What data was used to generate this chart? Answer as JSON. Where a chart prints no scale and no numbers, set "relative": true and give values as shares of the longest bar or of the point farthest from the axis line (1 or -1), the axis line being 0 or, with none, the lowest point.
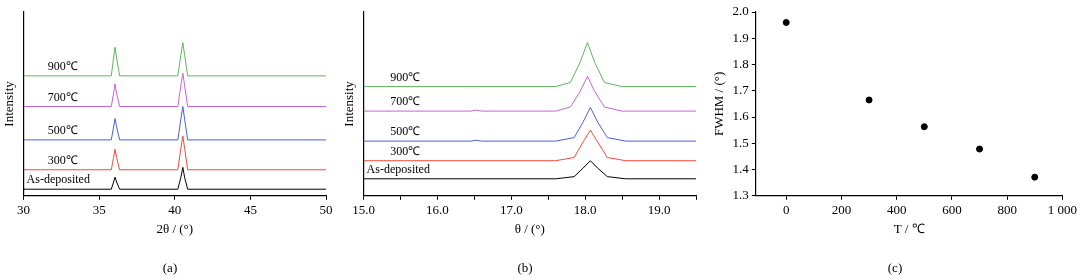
{
  "chart_data": [
    {
      "type": "line",
      "relative": true,
      "xlabel": "2θ / (°)",
      "ylabel": "Intensity",
      "annotations": [
        "(a)"
      ],
      "xlim": [
        30,
        50
      ],
      "xticks": [
        30,
        35,
        40,
        45,
        50
      ],
      "grid": false,
      "legend": false,
      "marker": "none",
      "line_style": "solid",
      "series": [
        {
          "name": "As-deposited",
          "color": "#000000",
          "x": [
            30,
            35.8,
            35.95,
            36.05,
            36.15,
            36.35,
            40.2,
            40.4,
            40.53,
            40.65,
            40.85,
            50
          ],
          "values": [
            0.043,
            0.043,
            0.09,
            0.122,
            0.09,
            0.043,
            0.043,
            0.12,
            0.186,
            0.12,
            0.043,
            0.043
          ]
        },
        {
          "name": "300℃",
          "color": "#f04a3a",
          "x": [
            30,
            35.8,
            35.95,
            36.05,
            36.15,
            36.35,
            40.2,
            40.4,
            40.53,
            40.65,
            40.85,
            50
          ],
          "values": [
            0.17,
            0.17,
            0.25,
            0.304,
            0.25,
            0.17,
            0.17,
            0.31,
            0.391,
            0.31,
            0.17,
            0.17
          ]
        },
        {
          "name": "500℃",
          "color": "#4a5ee0",
          "x": [
            30,
            35.8,
            35.95,
            36.05,
            36.15,
            36.35,
            40.2,
            40.4,
            40.53,
            40.65,
            40.85,
            50
          ],
          "values": [
            0.365,
            0.365,
            0.45,
            0.504,
            0.45,
            0.365,
            0.365,
            0.5,
            0.583,
            0.5,
            0.365,
            0.365
          ]
        },
        {
          "name": "700℃",
          "color": "#c464d4",
          "x": [
            30,
            35.8,
            35.95,
            36.05,
            36.15,
            36.35,
            40.2,
            40.4,
            40.53,
            40.65,
            40.85,
            50
          ],
          "values": [
            0.583,
            0.583,
            0.67,
            0.73,
            0.67,
            0.583,
            0.583,
            0.72,
            0.8,
            0.72,
            0.583,
            0.583
          ]
        },
        {
          "name": "900℃",
          "color": "#5cb85c",
          "x": [
            30,
            35.8,
            35.95,
            36.05,
            36.15,
            36.35,
            40.2,
            40.4,
            40.53,
            40.65,
            40.85,
            50
          ],
          "values": [
            0.783,
            0.783,
            0.9,
            0.97,
            0.9,
            0.783,
            0.783,
            0.92,
            1.0,
            0.92,
            0.783,
            0.783
          ]
        }
      ]
    },
    {
      "type": "line",
      "relative": true,
      "xlabel": "θ / (°)",
      "ylabel": "Intensity",
      "annotations": [
        "(b)"
      ],
      "xlim": [
        15,
        19.5
      ],
      "xticks": [
        {
          "value": 15,
          "label": "15.0"
        },
        {
          "value": 15.5,
          "label": null
        },
        {
          "value": 16,
          "label": "16.0"
        },
        {
          "value": 16.5,
          "label": null
        },
        {
          "value": 17,
          "label": "17.0"
        },
        {
          "value": 17.5,
          "label": null
        },
        {
          "value": 18,
          "label": "18.0"
        },
        {
          "value": 18.5,
          "label": null
        },
        {
          "value": 19,
          "label": "19.0"
        },
        {
          "value": 19.5,
          "label": null
        }
      ],
      "grid": false,
      "legend": false,
      "marker": "none",
      "line_style": "solid",
      "series": [
        {
          "name": "As-deposited",
          "color": "#000000",
          "x": [
            15,
            17.6,
            17.85,
            17.97,
            18.07,
            18.17,
            18.3,
            18.55,
            19.5
          ],
          "values": [
            0.111,
            0.111,
            0.125,
            0.18,
            0.229,
            0.18,
            0.125,
            0.111,
            0.111
          ]
        },
        {
          "name": "300℃",
          "color": "#f04a3a",
          "x": [
            15,
            17.6,
            17.85,
            17.97,
            18.07,
            18.17,
            18.3,
            18.55,
            19.5
          ],
          "values": [
            0.229,
            0.229,
            0.25,
            0.35,
            0.428,
            0.35,
            0.25,
            0.229,
            0.229
          ]
        },
        {
          "name": "500℃",
          "color": "#4a5ee0",
          "x": [
            15,
            16.45,
            16.52,
            16.6,
            17.6,
            17.85,
            17.97,
            18.07,
            18.17,
            18.3,
            18.55,
            19.5
          ],
          "values": [
            0.357,
            0.357,
            0.363,
            0.357,
            0.357,
            0.38,
            0.48,
            0.577,
            0.48,
            0.38,
            0.357,
            0.357
          ]
        },
        {
          "name": "700℃",
          "color": "#c464d4",
          "x": [
            15,
            16.45,
            16.52,
            16.6,
            17.6,
            17.8,
            17.93,
            18.03,
            18.13,
            18.26,
            18.5,
            19.5
          ],
          "values": [
            0.553,
            0.553,
            0.56,
            0.553,
            0.553,
            0.58,
            0.68,
            0.78,
            0.68,
            0.58,
            0.553,
            0.553
          ]
        },
        {
          "name": "900℃",
          "color": "#5cb85c",
          "x": [
            15,
            17.6,
            17.8,
            17.93,
            18.03,
            18.13,
            18.26,
            18.5,
            19.5
          ],
          "values": [
            0.713,
            0.713,
            0.74,
            0.87,
            1.0,
            0.87,
            0.74,
            0.713,
            0.713
          ]
        }
      ]
    },
    {
      "type": "scatter",
      "xlabel": "T / ℃",
      "ylabel": "FWHM / (°)",
      "annotations": [
        "(c)"
      ],
      "xlim": [
        -110,
        1000
      ],
      "xticks": [
        0,
        200,
        400,
        600,
        800,
        {
          "value": 1000,
          "label": "1 000"
        }
      ],
      "ylim": [
        1.3,
        2.0
      ],
      "yticks": [
        1.3,
        1.4,
        1.5,
        1.6,
        1.7,
        1.8,
        1.9,
        {
          "value": 2,
          "label": "2.0"
        }
      ],
      "grid": false,
      "legend": false,
      "marker": "circle",
      "series": [
        {
          "color": "#000000",
          "x": [
            0,
            300,
            500,
            700,
            900
          ],
          "values": [
            1.96,
            1.665,
            1.563,
            1.478,
            1.371
          ]
        }
      ]
    }
  ]
}
